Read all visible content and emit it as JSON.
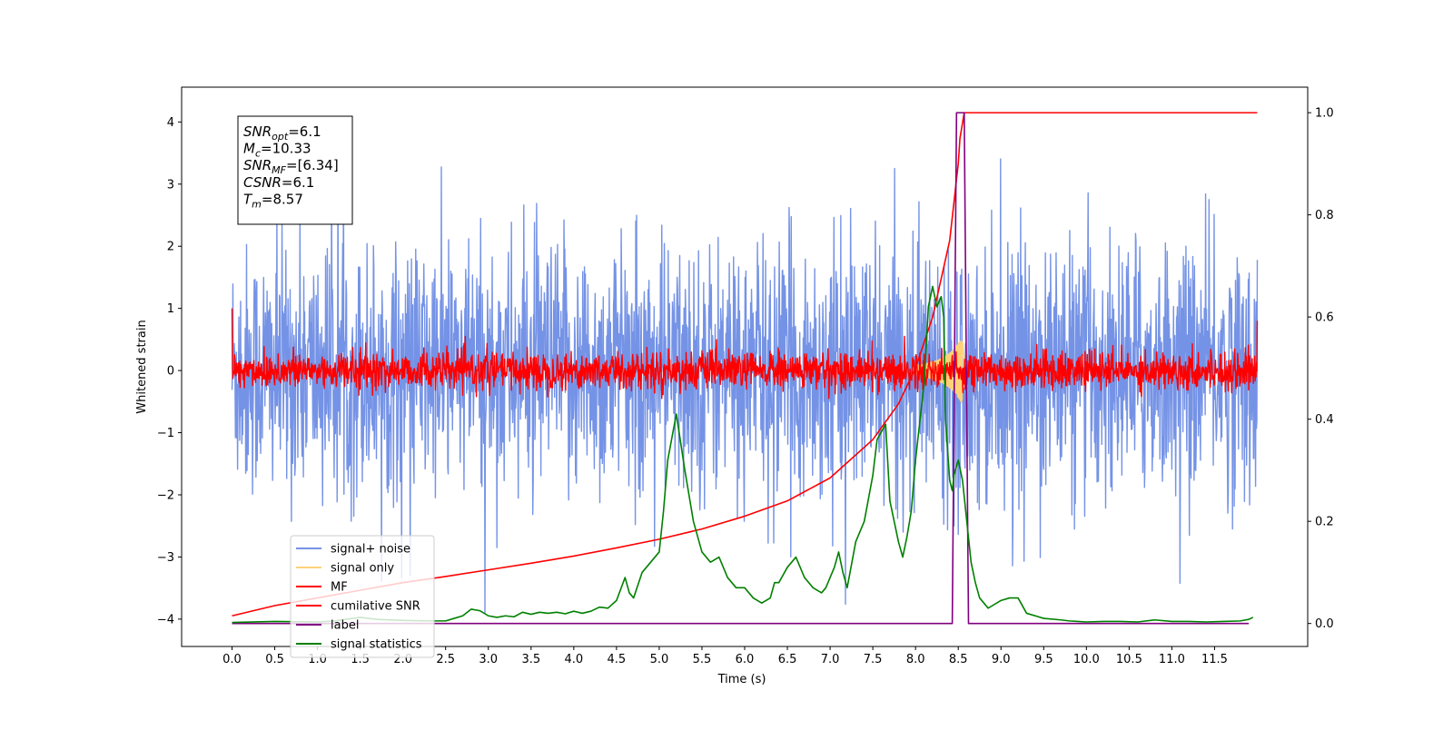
{
  "chart_data": {
    "type": "line",
    "xlabel": "Time (s)",
    "ylabel": "Whitened strain",
    "x_ticks": [
      "0.0",
      "0.5",
      "1.0",
      "1.5",
      "2.0",
      "2.5",
      "3.0",
      "3.5",
      "4.0",
      "4.5",
      "5.0",
      "5.5",
      "6.0",
      "6.5",
      "7.0",
      "7.5",
      "8.0",
      "8.5",
      "9.0",
      "9.5",
      "10.0",
      "10.5",
      "11.0",
      "11.5"
    ],
    "y_left_ticks": [
      "−4",
      "−3",
      "−2",
      "−1",
      "0",
      "1",
      "2",
      "3",
      "4"
    ],
    "y_right_ticks": [
      "0.0",
      "0.2",
      "0.4",
      "0.6",
      "0.8",
      "1.0"
    ],
    "xlim": [
      -0.59,
      12.59
    ],
    "ylim_left": [
      -4.44,
      4.56
    ],
    "ylim_right": [
      -0.045,
      1.05
    ],
    "info_box": [
      {
        "main": "SNR",
        "sub": "opt",
        "rest": "=6.1"
      },
      {
        "main": "M",
        "sub": "c",
        "rest": "=10.33"
      },
      {
        "main": "SNR",
        "sub": "MF",
        "rest": "=[6.34]"
      },
      {
        "main": "CSNR",
        "sub": "",
        "rest": "=6.1"
      },
      {
        "main": "T",
        "sub": "m",
        "rest": "=8.57"
      }
    ],
    "legend_position": "lower-left",
    "series": [
      {
        "name": "signal+ noise",
        "axis": "left",
        "color": "#7593e6",
        "kind": "noise",
        "std": 1.0,
        "x_start": 0.0,
        "x_end": 12.0,
        "approx_range": [
          -3.9,
          4.2
        ]
      },
      {
        "name": "signal only",
        "axis": "left",
        "color": "#ffd27a",
        "kind": "chirp",
        "x_start": 8.0,
        "x_end": 8.6,
        "peak_time": 8.55,
        "peak_amplitude": 0.55
      },
      {
        "name": "MF",
        "axis": "left",
        "color": "#ff0000",
        "kind": "noise",
        "std": 0.15,
        "x_start": 0.0,
        "x_end": 12.0,
        "approx_range": [
          -0.35,
          1.0
        ]
      },
      {
        "name": "cumilative SNR",
        "axis": "right",
        "color": "#ff0000",
        "kind": "line",
        "x": [
          0.0,
          0.5,
          1.0,
          1.5,
          2.0,
          2.5,
          3.0,
          3.5,
          4.0,
          4.5,
          5.0,
          5.5,
          6.0,
          6.5,
          7.0,
          7.5,
          7.8,
          8.0,
          8.2,
          8.4,
          8.5,
          8.52,
          8.57,
          9.0,
          10.0,
          11.0,
          12.0
        ],
        "y": [
          0.015,
          0.035,
          0.05,
          0.065,
          0.08,
          0.092,
          0.105,
          0.118,
          0.132,
          0.148,
          0.165,
          0.185,
          0.21,
          0.24,
          0.285,
          0.36,
          0.43,
          0.5,
          0.6,
          0.75,
          0.9,
          0.95,
          1.0,
          1.0,
          1.0,
          1.0,
          1.0
        ]
      },
      {
        "name": "label",
        "axis": "right",
        "color": "#800080",
        "kind": "line",
        "x": [
          0.0,
          8.43,
          8.48,
          8.57,
          8.62,
          11.9
        ],
        "y": [
          0.0,
          0.0,
          1.0,
          1.0,
          0.0,
          0.0
        ]
      },
      {
        "name": "signal statistics",
        "axis": "right",
        "color": "#008000",
        "kind": "line",
        "x": [
          0.0,
          0.5,
          1.0,
          1.2,
          1.5,
          1.7,
          2.0,
          2.3,
          2.5,
          2.6,
          2.7,
          2.8,
          2.9,
          3.0,
          3.1,
          3.2,
          3.3,
          3.4,
          3.5,
          3.6,
          3.7,
          3.8,
          3.9,
          4.0,
          4.1,
          4.2,
          4.3,
          4.4,
          4.5,
          4.6,
          4.65,
          4.7,
          4.8,
          4.9,
          5.0,
          5.05,
          5.1,
          5.2,
          5.3,
          5.4,
          5.5,
          5.6,
          5.7,
          5.8,
          5.9,
          6.0,
          6.1,
          6.2,
          6.3,
          6.35,
          6.4,
          6.5,
          6.6,
          6.7,
          6.8,
          6.9,
          6.95,
          7.0,
          7.05,
          7.1,
          7.15,
          7.2,
          7.3,
          7.4,
          7.5,
          7.55,
          7.65,
          7.7,
          7.75,
          7.8,
          7.85,
          7.9,
          7.95,
          8.0,
          8.1,
          8.15,
          8.2,
          8.25,
          8.3,
          8.33,
          8.35,
          8.4,
          8.43,
          8.45,
          8.5,
          8.55,
          8.6,
          8.65,
          8.7,
          8.75,
          8.8,
          8.85,
          8.9,
          9.0,
          9.1,
          9.2,
          9.3,
          9.5,
          9.7,
          9.8,
          9.9,
          10.0,
          10.2,
          10.4,
          10.6,
          10.8,
          11.0,
          11.2,
          11.4,
          11.6,
          11.8,
          11.9,
          11.95
        ],
        "y": [
          0.002,
          0.004,
          0.003,
          0.005,
          0.012,
          0.008,
          0.006,
          0.005,
          0.005,
          0.01,
          0.015,
          0.028,
          0.025,
          0.015,
          0.012,
          0.015,
          0.013,
          0.022,
          0.018,
          0.022,
          0.02,
          0.022,
          0.019,
          0.024,
          0.02,
          0.024,
          0.032,
          0.03,
          0.045,
          0.09,
          0.06,
          0.05,
          0.1,
          0.12,
          0.14,
          0.22,
          0.32,
          0.41,
          0.3,
          0.2,
          0.14,
          0.12,
          0.13,
          0.09,
          0.07,
          0.07,
          0.05,
          0.04,
          0.05,
          0.08,
          0.08,
          0.11,
          0.13,
          0.09,
          0.07,
          0.06,
          0.07,
          0.09,
          0.11,
          0.14,
          0.1,
          0.07,
          0.16,
          0.2,
          0.29,
          0.36,
          0.39,
          0.24,
          0.2,
          0.16,
          0.13,
          0.17,
          0.22,
          0.32,
          0.47,
          0.62,
          0.66,
          0.62,
          0.64,
          0.6,
          0.4,
          0.28,
          0.26,
          0.29,
          0.32,
          0.28,
          0.2,
          0.12,
          0.08,
          0.05,
          0.04,
          0.03,
          0.035,
          0.045,
          0.05,
          0.05,
          0.02,
          0.01,
          0.007,
          0.005,
          0.004,
          0.003,
          0.004,
          0.004,
          0.003,
          0.007,
          0.004,
          0.004,
          0.003,
          0.004,
          0.005,
          0.008,
          0.012
        ]
      }
    ]
  }
}
